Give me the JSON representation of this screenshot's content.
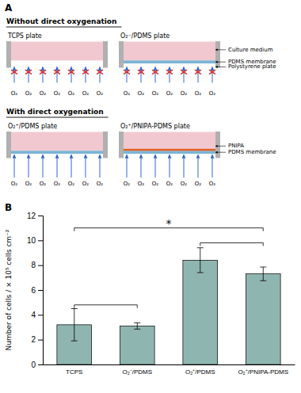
{
  "chart_data": {
    "type": "bar",
    "categories": [
      "TCPS",
      "O₂⁻/PDMS",
      "O₂⁺/PDMS",
      "O₂⁺/PNIPA-PDMS"
    ],
    "values": [
      3.2,
      3.1,
      8.4,
      7.3
    ],
    "errors": [
      1.3,
      0.25,
      1.0,
      0.55
    ],
    "color": "#8fb5b0",
    "ylim": [
      0,
      12
    ],
    "yticks": [
      0,
      2,
      4,
      6,
      8,
      10,
      12
    ],
    "ylabel": "Number of cells / × 10⁵ cells cm⁻²",
    "grid": false,
    "brackets": [
      {
        "from": "TCPS",
        "to": "O₂⁻/PDMS",
        "y": 4.8
      },
      {
        "from": "O₂⁺/PDMS",
        "to": "O₂⁺/PNIPA-PDMS",
        "y": 9.8
      },
      {
        "from": "TCPS",
        "to": "O₂⁺/PNIPA-PDMS",
        "y": 11.0,
        "label": "*"
      }
    ],
    "annotations": [
      "A",
      "Without direct oxygenation",
      "With direct oxygenation",
      "TCPS plate",
      "O₂⁻/PDMS plate",
      "O₂⁺/PDMS plate",
      "O₂⁺/PNIPA-PDMS plate",
      "O₂",
      "Culture medium",
      "PDMS membrane",
      "Polystyrene plate",
      "PNIPA",
      "PDMS membrane",
      "B"
    ]
  }
}
